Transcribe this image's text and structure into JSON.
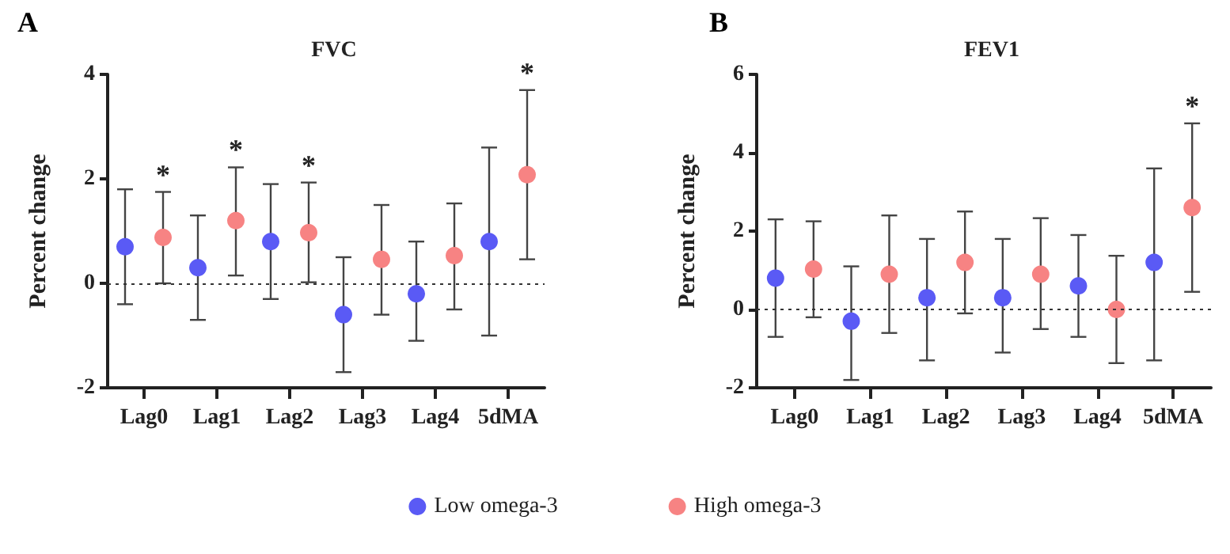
{
  "chart_data": [
    {
      "type": "scatter",
      "title": "FVC",
      "ylabel": "Percent change",
      "categories": [
        "Lag0",
        "Lag1",
        "Lag2",
        "Lag3",
        "Lag4",
        "5dMA"
      ],
      "series": [
        {
          "name": "Low omega-3",
          "color": "#5a5af5",
          "values": [
            0.7,
            0.3,
            0.8,
            -0.6,
            -0.2,
            0.8
          ],
          "errors": [
            [
              -0.4,
              1.8
            ],
            [
              -0.7,
              1.3
            ],
            [
              -0.3,
              1.9
            ],
            [
              -1.7,
              0.5
            ],
            [
              -1.1,
              0.8
            ],
            [
              -1.0,
              2.6
            ]
          ]
        },
        {
          "name": "High omega-3",
          "color": "#f78383",
          "values": [
            0.88,
            1.2,
            0.97,
            0.46,
            0.53,
            2.08
          ],
          "errors": [
            [
              0,
              1.75
            ],
            [
              0.15,
              2.22
            ],
            [
              0.02,
              1.93
            ],
            [
              -0.6,
              1.5
            ],
            [
              -0.5,
              1.53
            ],
            [
              0.46,
              3.7
            ]
          ],
          "value_labels": [
            "*",
            "*",
            "*",
            null,
            null,
            "*"
          ]
        }
      ],
      "ylim": [
        -2,
        4
      ],
      "yticks": [
        -2,
        0,
        2,
        4
      ],
      "grid": false,
      "marker": "circle",
      "legend": "bottom",
      "ref_lines": [
        {
          "axis": "y",
          "value": 0,
          "line_style": "dotted"
        }
      ],
      "annotations": [
        "A"
      ]
    },
    {
      "type": "scatter",
      "title": "FEV1",
      "ylabel": "Percent change",
      "categories": [
        "Lag0",
        "Lag1",
        "Lag2",
        "Lag3",
        "Lag4",
        "5dMA"
      ],
      "series": [
        {
          "color": "#5a5af5",
          "values": [
            0.8,
            -0.3,
            0.3,
            0.3,
            0.6,
            1.2
          ],
          "errors": [
            [
              -0.7,
              2.3
            ],
            [
              -1.8,
              1.1
            ],
            [
              -1.3,
              1.8
            ],
            [
              -1.1,
              1.8
            ],
            [
              -0.7,
              1.9
            ],
            [
              -1.3,
              3.6
            ]
          ]
        },
        {
          "color": "#f78383",
          "values": [
            1.03,
            0.9,
            1.2,
            0.9,
            0.0,
            2.6
          ],
          "errors": [
            [
              -0.2,
              2.25
            ],
            [
              -0.6,
              2.4
            ],
            [
              -0.1,
              2.5
            ],
            [
              -0.5,
              2.33
            ],
            [
              -1.37,
              1.37
            ],
            [
              0.45,
              4.75
            ]
          ],
          "value_labels": [
            null,
            null,
            null,
            null,
            null,
            "*"
          ]
        }
      ],
      "ylim": [
        -2,
        6
      ],
      "yticks": [
        -2,
        0,
        2,
        4,
        6
      ],
      "grid": false,
      "marker": "circle",
      "legend": false,
      "ref_lines": [
        {
          "axis": "y",
          "value": 0,
          "line_style": "dotted"
        }
      ],
      "annotations": [
        "B"
      ]
    }
  ]
}
